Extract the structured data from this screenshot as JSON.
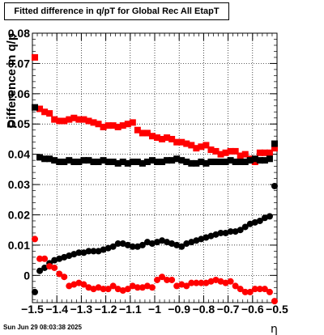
{
  "canvas_title": "Fitted difference in q/pT for Global Rec All EtapT",
  "timestamp": "Sun Jun 29 08:03:38 2025",
  "chart_data": {
    "type": "scatter",
    "title": "Fitted difference in q/pT for Global Rec All EtapT",
    "xlabel": "η",
    "ylabel": "Difference in q/p",
    "xlim": [
      -1.5,
      -0.5
    ],
    "ylim": [
      -0.009,
      0.08
    ],
    "xticks": [
      -1.5,
      -1.4,
      -1.3,
      -1.2,
      -1.1,
      -1,
      -0.9,
      -0.8,
      -0.7,
      -0.6,
      -0.5
    ],
    "xtick_labels": [
      "−1.5",
      "−1.4",
      "−1.3",
      "−1.2",
      "−1.1",
      "−1",
      "−0.9",
      "−0.8",
      "−0.7",
      "−0.6",
      "−0.5"
    ],
    "yticks": [
      0,
      0.01,
      0.02,
      0.03,
      0.04,
      0.05,
      0.06,
      0.07,
      0.08
    ],
    "ytick_labels": [
      "0",
      "0.01",
      "0.02",
      "0.03",
      "0.04",
      "0.05",
      "0.06",
      "0.07",
      "0.08"
    ],
    "grid": true,
    "x": [
      -1.49,
      -1.47,
      -1.45,
      -1.43,
      -1.41,
      -1.39,
      -1.37,
      -1.35,
      -1.33,
      -1.31,
      -1.29,
      -1.27,
      -1.25,
      -1.23,
      -1.21,
      -1.19,
      -1.17,
      -1.15,
      -1.13,
      -1.11,
      -1.09,
      -1.07,
      -1.05,
      -1.03,
      -1.01,
      -0.99,
      -0.97,
      -0.95,
      -0.93,
      -0.91,
      -0.89,
      -0.87,
      -0.85,
      -0.83,
      -0.81,
      -0.79,
      -0.77,
      -0.75,
      -0.73,
      -0.71,
      -0.69,
      -0.67,
      -0.65,
      -0.63,
      -0.61,
      -0.59,
      -0.57,
      -0.55,
      -0.53,
      -0.51
    ],
    "series": [
      {
        "color": "#ff0000",
        "marker": "square",
        "values": [
          0.072,
          0.055,
          0.054,
          0.0535,
          0.0515,
          0.051,
          0.051,
          0.0515,
          0.052,
          0.0515,
          0.0515,
          0.051,
          0.0505,
          0.05,
          0.049,
          0.0495,
          0.0495,
          0.049,
          0.0495,
          0.05,
          0.0505,
          0.048,
          0.047,
          0.047,
          0.046,
          0.0455,
          0.045,
          0.0455,
          0.045,
          0.044,
          0.044,
          0.0435,
          0.043,
          0.042,
          0.0425,
          0.043,
          0.0415,
          0.041,
          0.04,
          0.0405,
          0.041,
          0.041,
          0.0395,
          0.04,
          0.0385,
          0.0375,
          0.0405,
          0.0405,
          0.0405,
          0.042
        ]
      },
      {
        "color": "#000000",
        "marker": "square",
        "values": [
          0.0555,
          0.039,
          0.0385,
          0.0385,
          0.038,
          0.0375,
          0.0375,
          0.038,
          0.0375,
          0.0375,
          0.038,
          0.038,
          0.0375,
          0.0375,
          0.038,
          0.0375,
          0.0375,
          0.037,
          0.0375,
          0.037,
          0.0375,
          0.0375,
          0.037,
          0.0375,
          0.038,
          0.0375,
          0.0375,
          0.038,
          0.038,
          0.0385,
          0.038,
          0.0375,
          0.037,
          0.037,
          0.0375,
          0.037,
          0.0375,
          0.0375,
          0.0375,
          0.0375,
          0.038,
          0.0375,
          0.0375,
          0.0375,
          0.038,
          0.0385,
          0.038,
          0.038,
          0.0385,
          0.0435
        ]
      },
      {
        "color": "#000000",
        "marker": "circle",
        "values": [
          -0.0055,
          0.0015,
          0.0025,
          0.004,
          0.005,
          0.0055,
          0.006,
          0.0065,
          0.007,
          0.0075,
          0.0075,
          0.008,
          0.008,
          0.008,
          0.0085,
          0.009,
          0.0095,
          0.0105,
          0.0105,
          0.01,
          0.0095,
          0.0095,
          0.01,
          0.011,
          0.0105,
          0.011,
          0.0115,
          0.011,
          0.0105,
          0.01,
          0.0095,
          0.0105,
          0.011,
          0.0115,
          0.012,
          0.0125,
          0.013,
          0.0135,
          0.014,
          0.014,
          0.0145,
          0.0145,
          0.015,
          0.016,
          0.017,
          0.0175,
          0.018,
          0.019,
          0.0195,
          0.0295
        ]
      },
      {
        "color": "#ff0000",
        "marker": "circle",
        "values": [
          0.012,
          0.0055,
          0.0055,
          0.003,
          0.0025,
          0.0005,
          -0.0005,
          -0.0035,
          -0.003,
          -0.0025,
          -0.003,
          -0.004,
          -0.0045,
          -0.004,
          -0.0045,
          -0.0045,
          -0.0035,
          -0.0045,
          -0.005,
          -0.0045,
          -0.0035,
          -0.004,
          -0.004,
          -0.0035,
          -0.004,
          -0.0015,
          -0.0005,
          -0.0015,
          -0.0015,
          -0.0035,
          -0.003,
          -0.0035,
          -0.0025,
          -0.0025,
          -0.0025,
          -0.0025,
          -0.002,
          -0.0015,
          -0.002,
          -0.0025,
          -0.002,
          -0.0035,
          -0.0045,
          -0.0055,
          -0.0055,
          -0.0045,
          -0.0045,
          -0.0045,
          -0.0055,
          -0.0085
        ]
      }
    ]
  }
}
